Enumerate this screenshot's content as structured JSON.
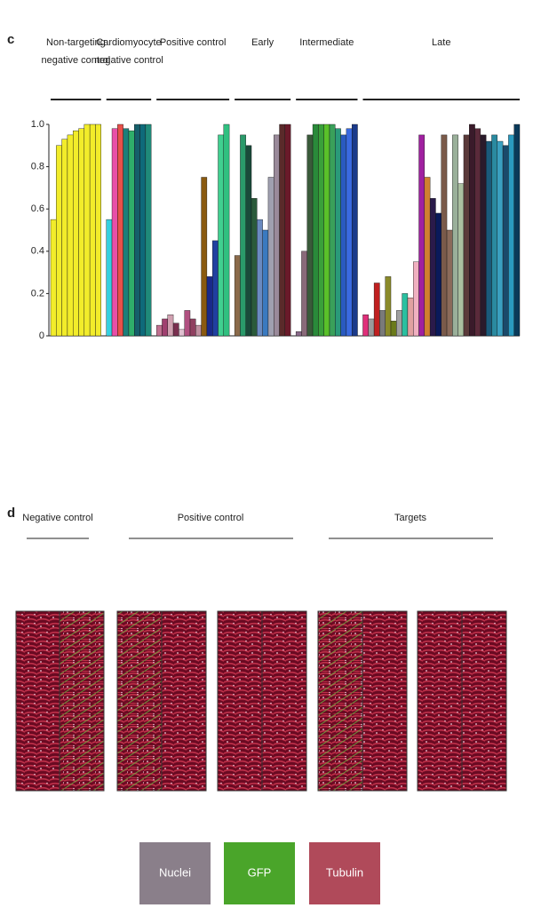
{
  "panel_c": {
    "label": "c",
    "type": "bar",
    "ylim": [
      0,
      1
    ],
    "yticks": [
      0,
      0.2,
      0.4,
      0.6,
      0.8,
      {
        "value": 1,
        "label": "1.0"
      }
    ],
    "groups": [
      {
        "name": [
          "Non-targeting",
          "negative control"
        ],
        "colors": [
          "#f2ec2a"
        ],
        "values": [
          0.55,
          0.9,
          0.93,
          0.95,
          0.97,
          0.98,
          1.0,
          1.0,
          1.0
        ]
      },
      {
        "name": [
          "Cardiomyocyte",
          "negative control"
        ],
        "colors": [
          "#35d0e0",
          "#e84fa8",
          "#e8504a",
          "#1c7f7a",
          "#2fae6a",
          "#155f6a",
          "#0e6a7a",
          "#1f8a7a"
        ],
        "values": [
          0.55,
          0.98,
          1.0,
          0.98,
          0.97,
          1.0,
          1.0,
          1.0
        ]
      },
      {
        "name": [
          "Positive control"
        ],
        "colors": [
          "#c07090",
          "#a04070",
          "#d0a0b0",
          "#7a3050",
          "#e0c0d0",
          "#b05080",
          "#904060",
          "#c090a0",
          "#8a5a10",
          "#1a2a8a",
          "#2040a0",
          "#40d090",
          "#30c080"
        ],
        "values": [
          0.05,
          0.08,
          0.1,
          0.06,
          0.03,
          0.12,
          0.08,
          0.05,
          0.75,
          0.28,
          0.45,
          0.95,
          1.0
        ]
      },
      {
        "name": [
          "Early"
        ],
        "colors": [
          "#8a6a4a",
          "#2a9a6a",
          "#1a4a3a",
          "#2a5a3a",
          "#6a8ac0",
          "#3a7ac0",
          "#a0a0b0",
          "#9a8a9a",
          "#5a2a2a",
          "#6a1a2a"
        ],
        "values": [
          0.38,
          0.95,
          0.9,
          0.65,
          0.55,
          0.5,
          0.75,
          0.95,
          1.0,
          1.0
        ]
      },
      {
        "name": [
          "Intermediate"
        ],
        "colors": [
          "#8a6a8a",
          "#8a6a7a",
          "#3a5a3a",
          "#2a8a3a",
          "#3aa03a",
          "#5ac02a",
          "#3aa05a",
          "#2a9a7a",
          "#2a5ac0",
          "#3a6ae0",
          "#1a3a8a"
        ],
        "values": [
          0.02,
          0.4,
          0.95,
          1.0,
          1.0,
          1.0,
          1.0,
          0.98,
          0.95,
          0.98,
          1.0
        ]
      },
      {
        "name": [
          "Late"
        ],
        "colors": [
          "#e0307a",
          "#9a9a9a",
          "#c02020",
          "#7a7a7a",
          "#8a8a2a",
          "#6a7a1a",
          "#a0a0a0",
          "#2ac0a0",
          "#e0a0a0",
          "#f0b0c0",
          "#a020a0",
          "#d08030",
          "#2a1a4a",
          "#0a1a5a",
          "#7a5a4a",
          "#8a6a5a",
          "#9ab09a",
          "#aac0a0",
          "#5a3a3a",
          "#3a1a2a",
          "#5a2a3a",
          "#2a1a2a",
          "#1a5a7a",
          "#2a8aa0",
          "#3aa0c0",
          "#1a4a6a",
          "#2a9ac0",
          "#0a3a5a"
        ],
        "values": [
          0.1,
          0.08,
          0.25,
          0.12,
          0.28,
          0.07,
          0.12,
          0.2,
          0.18,
          0.35,
          0.95,
          0.75,
          0.65,
          0.58,
          0.95,
          0.5,
          0.95,
          0.72,
          0.95,
          1.0,
          0.98,
          0.95,
          0.92,
          0.95,
          0.92,
          0.9,
          0.95,
          1.0
        ]
      }
    ]
  },
  "panel_d": {
    "label": "d",
    "sections": [
      "Negative control",
      "Positive control",
      "Targets"
    ],
    "legend": [
      "Nuclei",
      "GFP",
      "Tubulin"
    ]
  }
}
